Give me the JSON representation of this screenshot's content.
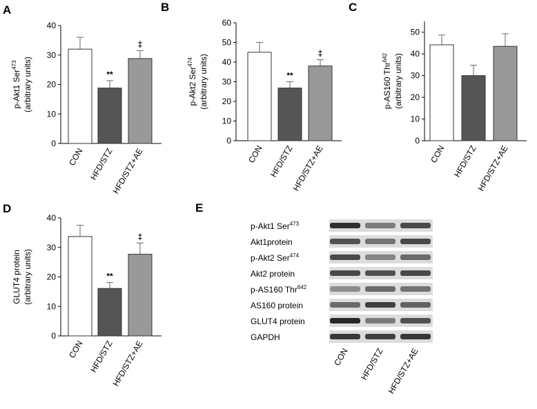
{
  "chart_data": [
    {
      "type": "bar",
      "panel": "A",
      "ylabel": {
        "text": "p-Akt1 Ser",
        "sup": "473"
      },
      "ylabel2": "(arbitrary units)",
      "categories": [
        "CON",
        "HFD/STZ",
        "HFD/STZ+AE"
      ],
      "values": [
        32,
        18.8,
        28.8
      ],
      "errors": [
        4,
        2.5,
        2.7
      ],
      "colors": [
        "#ffffff",
        "#555555",
        "#999999"
      ],
      "value_annotations": [
        null,
        "**",
        "‡"
      ],
      "ylim": [
        0,
        40
      ],
      "yticks": [
        0,
        10,
        20,
        30,
        40
      ]
    },
    {
      "type": "bar",
      "panel": "B",
      "ylabel": {
        "text": "p-Akt2 Ser",
        "sup": "474"
      },
      "ylabel2": "(arbitrary units)",
      "categories": [
        "CON",
        "HFD/STZ",
        "HFD/STZ+AE"
      ],
      "values": [
        45,
        26.8,
        38
      ],
      "errors": [
        5,
        3.2,
        3.2
      ],
      "colors": [
        "#ffffff",
        "#555555",
        "#999999"
      ],
      "value_annotations": [
        null,
        "**",
        "‡"
      ],
      "ylim": [
        0,
        60
      ],
      "yticks": [
        0,
        10,
        20,
        30,
        40,
        50,
        60
      ]
    },
    {
      "type": "bar",
      "panel": "C",
      "ylabel": {
        "text": "p-AS160 Thr",
        "sup": "642"
      },
      "ylabel2": "(arbitrary units)",
      "categories": [
        "CON",
        "HFD/STZ",
        "HFD/STZ+AE"
      ],
      "values": [
        44.2,
        30,
        43.5
      ],
      "errors": [
        4.5,
        4.8,
        5.8
      ],
      "colors": [
        "#ffffff",
        "#555555",
        "#999999"
      ],
      "ylim": [
        0,
        55
      ],
      "yticks": [
        0,
        10,
        20,
        30,
        40,
        50
      ]
    },
    {
      "type": "bar",
      "panel": "D",
      "ylabel": {
        "text": "GLUT4 protein"
      },
      "ylabel2": "(arbitrary units)",
      "categories": [
        "CON",
        "HFD/STZ",
        "HFD/STZ+AE"
      ],
      "values": [
        33.7,
        16.1,
        27.7
      ],
      "errors": [
        3.8,
        2,
        3.8
      ],
      "colors": [
        "#ffffff",
        "#555555",
        "#999999"
      ],
      "value_annotations": [
        null,
        "**",
        "‡"
      ],
      "ylim": [
        0,
        40
      ],
      "yticks": [
        0,
        10,
        20,
        30,
        40
      ]
    }
  ],
  "blot": {
    "panel": "E",
    "rows": [
      {
        "text": "p-Akt1 Ser",
        "sup": "473"
      },
      {
        "text": "Akt1protein"
      },
      {
        "text": "p-Akt2 Ser",
        "sup": "474"
      },
      {
        "text": "Akt2 protein"
      },
      {
        "text": "p-AS160 Thr",
        "sup": "642"
      },
      {
        "text": "AS160 protein"
      },
      {
        "text": "GLUT4 protein"
      },
      {
        "text": "GAPDH"
      }
    ],
    "lanes": [
      "CON",
      "HFD/STZ",
      "HFD/STZ+AE"
    ]
  }
}
